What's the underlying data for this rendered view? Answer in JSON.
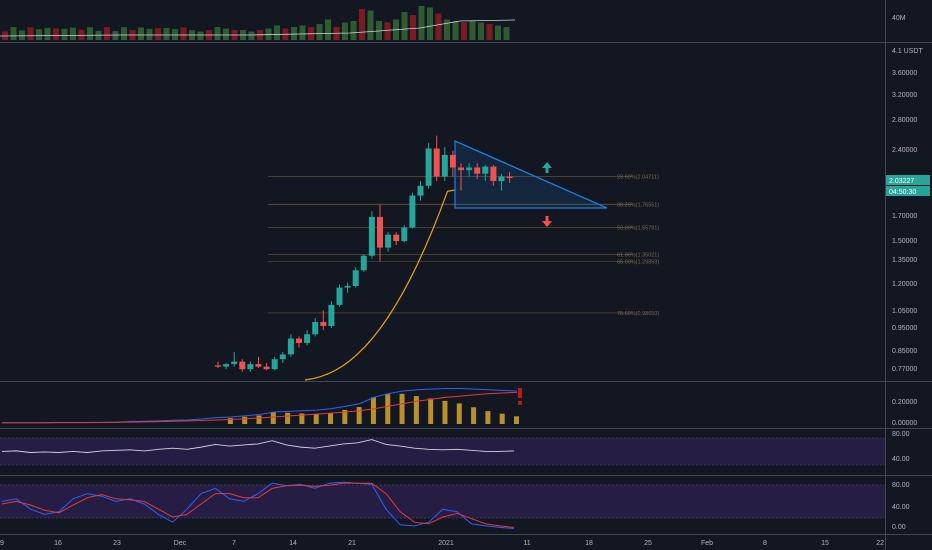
{
  "colors": {
    "background": "#131722",
    "bull": "#26a69a",
    "bear": "#ef5350",
    "bull_vol": "#2e5b31",
    "bear_vol": "#7a1b24",
    "triangle": "#1e7fe0",
    "curve": "#e8a317",
    "fib": "#6b5a35",
    "rsi_line": "#d1d4dc",
    "rsi_band": "#2a1f4a",
    "stoch_k": "#2962ff",
    "stoch_d": "#e53935",
    "macd_hist": "#b8912b",
    "up_arrow": "#26a69a",
    "down_arrow": "#ef5350"
  },
  "volume_panel": {
    "axis_label": "40M"
  },
  "price_panel": {
    "axis_top": "4.1 USDT",
    "ticks": [
      "3.60000",
      "3.20000",
      "2.80000",
      "2.40000",
      "1.70000",
      "1.50000",
      "1.35000",
      "1.20000",
      "1.05000",
      "0.95000",
      "0.85000",
      "0.77000"
    ],
    "last_price_tag": "2.03227",
    "countdown_tag": "04:50:30",
    "fib_levels": [
      {
        "label": "23.60%(2.04711)"
      },
      {
        "label": "38.20%(1.76551)"
      },
      {
        "label": "50.00%(1.55791)"
      },
      {
        "label": "61.80%(1.35021)"
      },
      {
        "label": "65.00%(1.29859)"
      },
      {
        "label": "78.60%(0.98650)"
      }
    ],
    "up_arrow_icon": "arrow-up-icon",
    "down_arrow_icon": "arrow-down-icon"
  },
  "macd_panel": {
    "ticks": [
      "0.20000",
      "0.00000"
    ]
  },
  "rsi_panel": {
    "ticks": [
      "80.00",
      "40.00"
    ]
  },
  "stoch_panel": {
    "ticks": [
      "80.00",
      "40.00",
      "0.00"
    ]
  },
  "time_axis": {
    "labels": [
      "9",
      "16",
      "23",
      "Dec",
      "7",
      "14",
      "21",
      "2021",
      "11",
      "18",
      "25",
      "Feb",
      "8",
      "15",
      "22"
    ]
  },
  "chart_data": {
    "type": "candlestick",
    "symbol_unit": "USDT",
    "price_scale": "log",
    "ylim": [
      0.7,
      4.1
    ],
    "candles": [
      {
        "o": 0.745,
        "h": 0.76,
        "l": 0.735,
        "c": 0.74
      },
      {
        "o": 0.74,
        "h": 0.755,
        "l": 0.73,
        "c": 0.75
      },
      {
        "o": 0.75,
        "h": 0.8,
        "l": 0.74,
        "c": 0.76
      },
      {
        "o": 0.76,
        "h": 0.77,
        "l": 0.72,
        "c": 0.73
      },
      {
        "o": 0.73,
        "h": 0.76,
        "l": 0.72,
        "c": 0.75
      },
      {
        "o": 0.75,
        "h": 0.78,
        "l": 0.735,
        "c": 0.74
      },
      {
        "o": 0.74,
        "h": 0.755,
        "l": 0.725,
        "c": 0.73
      },
      {
        "o": 0.73,
        "h": 0.78,
        "l": 0.725,
        "c": 0.77
      },
      {
        "o": 0.77,
        "h": 0.8,
        "l": 0.755,
        "c": 0.79
      },
      {
        "o": 0.79,
        "h": 0.88,
        "l": 0.78,
        "c": 0.86
      },
      {
        "o": 0.86,
        "h": 0.87,
        "l": 0.82,
        "c": 0.84
      },
      {
        "o": 0.84,
        "h": 0.9,
        "l": 0.83,
        "c": 0.88
      },
      {
        "o": 0.88,
        "h": 0.96,
        "l": 0.87,
        "c": 0.94
      },
      {
        "o": 0.94,
        "h": 1.0,
        "l": 0.9,
        "c": 0.92
      },
      {
        "o": 0.92,
        "h": 1.05,
        "l": 0.91,
        "c": 1.03
      },
      {
        "o": 1.03,
        "h": 1.15,
        "l": 1.02,
        "c": 1.13
      },
      {
        "o": 1.13,
        "h": 1.16,
        "l": 1.1,
        "c": 1.14
      },
      {
        "o": 1.14,
        "h": 1.26,
        "l": 1.13,
        "c": 1.24
      },
      {
        "o": 1.24,
        "h": 1.35,
        "l": 1.23,
        "c": 1.34
      },
      {
        "o": 1.34,
        "h": 1.7,
        "l": 1.32,
        "c": 1.65
      },
      {
        "o": 1.65,
        "h": 1.76,
        "l": 1.3,
        "c": 1.4
      },
      {
        "o": 1.4,
        "h": 1.52,
        "l": 1.37,
        "c": 1.5
      },
      {
        "o": 1.5,
        "h": 1.52,
        "l": 1.42,
        "c": 1.45
      },
      {
        "o": 1.45,
        "h": 1.58,
        "l": 1.44,
        "c": 1.56
      },
      {
        "o": 1.56,
        "h": 1.88,
        "l": 1.55,
        "c": 1.85
      },
      {
        "o": 1.85,
        "h": 2.0,
        "l": 1.8,
        "c": 1.95
      },
      {
        "o": 1.95,
        "h": 2.45,
        "l": 1.92,
        "c": 2.38
      },
      {
        "o": 2.38,
        "h": 2.55,
        "l": 2.0,
        "c": 2.05
      },
      {
        "o": 2.05,
        "h": 2.4,
        "l": 2.0,
        "c": 2.3
      },
      {
        "o": 2.3,
        "h": 2.35,
        "l": 2.05,
        "c": 2.15
      },
      {
        "o": 2.15,
        "h": 2.2,
        "l": 1.9,
        "c": 2.12
      },
      {
        "o": 2.12,
        "h": 2.2,
        "l": 2.05,
        "c": 2.15
      },
      {
        "o": 2.15,
        "h": 2.2,
        "l": 2.02,
        "c": 2.08
      },
      {
        "o": 2.08,
        "h": 2.18,
        "l": 2.0,
        "c": 2.16
      },
      {
        "o": 2.16,
        "h": 2.18,
        "l": 1.95,
        "c": 2.0
      },
      {
        "o": 2.0,
        "h": 2.08,
        "l": 1.9,
        "c": 2.05
      },
      {
        "o": 2.05,
        "h": 2.1,
        "l": 1.98,
        "c": 2.032
      }
    ],
    "volume_relative": [
      0.15,
      0.2,
      0.3,
      0.25,
      0.2,
      0.2,
      0.15,
      0.2,
      0.25,
      0.35,
      0.25,
      0.3,
      0.35,
      0.3,
      0.4,
      0.55,
      0.3,
      0.45,
      0.5,
      0.9,
      0.85,
      0.5,
      0.45,
      0.55,
      0.8,
      0.7,
      1.0,
      0.95,
      0.75,
      0.55,
      0.5,
      0.45,
      0.5,
      0.45,
      0.4,
      0.35,
      0.3
    ],
    "fib_values": [
      2.04711,
      1.76551,
      1.55791,
      1.35021,
      1.29859,
      0.9865
    ],
    "rsi": [
      62,
      63,
      60,
      61,
      60,
      62,
      60,
      63,
      64,
      65,
      63,
      66,
      68,
      66,
      70,
      75,
      72,
      74,
      76,
      82,
      74,
      70,
      68,
      72,
      76,
      78,
      84,
      75,
      72,
      68,
      66,
      65,
      66,
      64,
      62,
      62,
      63
    ],
    "stoch_k": [
      55,
      60,
      40,
      30,
      35,
      60,
      70,
      65,
      55,
      60,
      50,
      30,
      15,
      40,
      70,
      80,
      60,
      55,
      70,
      90,
      85,
      88,
      80,
      90,
      92,
      90,
      88,
      40,
      10,
      8,
      15,
      40,
      35,
      12,
      8,
      5,
      3
    ],
    "stoch_d": [
      50,
      55,
      48,
      38,
      33,
      48,
      62,
      68,
      60,
      58,
      55,
      40,
      25,
      30,
      50,
      70,
      70,
      62,
      62,
      80,
      85,
      86,
      84,
      86,
      90,
      90,
      90,
      70,
      35,
      15,
      12,
      25,
      32,
      22,
      12,
      8,
      5
    ],
    "macd": [
      0.01,
      0.01,
      0.01,
      0.01,
      0.012,
      0.012,
      0.012,
      0.013,
      0.015,
      0.02,
      0.022,
      0.025,
      0.03,
      0.032,
      0.04,
      0.05,
      0.055,
      0.065,
      0.075,
      0.095,
      0.1,
      0.105,
      0.11,
      0.12,
      0.14,
      0.16,
      0.21,
      0.24,
      0.26,
      0.27,
      0.275,
      0.28,
      0.28,
      0.275,
      0.27,
      0.265,
      0.26
    ],
    "macd_signal": [
      0.01,
      0.01,
      0.01,
      0.01,
      0.011,
      0.011,
      0.011,
      0.012,
      0.013,
      0.015,
      0.017,
      0.019,
      0.022,
      0.025,
      0.028,
      0.032,
      0.036,
      0.041,
      0.047,
      0.055,
      0.063,
      0.071,
      0.078,
      0.086,
      0.095,
      0.105,
      0.12,
      0.14,
      0.16,
      0.18,
      0.195,
      0.21,
      0.22,
      0.23,
      0.24,
      0.245,
      0.25
    ]
  }
}
